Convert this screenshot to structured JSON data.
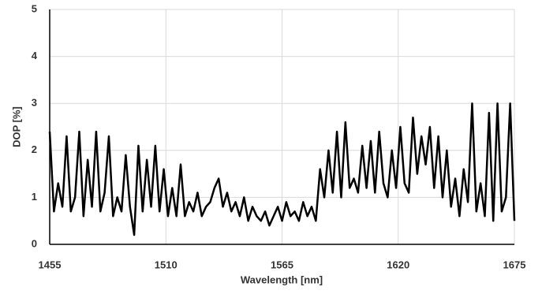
{
  "chart_data": {
    "type": "line",
    "x_label": "Wavelength [nm]",
    "y_label": "DOP [%]",
    "x": [
      1455,
      1457,
      1459,
      1461,
      1463,
      1465,
      1467,
      1469,
      1471,
      1473,
      1475,
      1477,
      1479,
      1481,
      1483,
      1485,
      1487,
      1489,
      1491,
      1493,
      1495,
      1497,
      1499,
      1501,
      1503,
      1505,
      1507,
      1509,
      1511,
      1513,
      1515,
      1517,
      1519,
      1521,
      1523,
      1525,
      1527,
      1529,
      1531,
      1533,
      1535,
      1537,
      1539,
      1541,
      1543,
      1545,
      1547,
      1549,
      1551,
      1553,
      1555,
      1557,
      1559,
      1561,
      1563,
      1565,
      1567,
      1569,
      1571,
      1573,
      1575,
      1577,
      1579,
      1581,
      1583,
      1585,
      1587,
      1589,
      1591,
      1593,
      1595,
      1597,
      1599,
      1601,
      1603,
      1605,
      1607,
      1609,
      1611,
      1613,
      1615,
      1617,
      1619,
      1621,
      1623,
      1625,
      1627,
      1629,
      1631,
      1633,
      1635,
      1637,
      1639,
      1641,
      1643,
      1645,
      1647,
      1649,
      1651,
      1653,
      1655,
      1657,
      1659,
      1661,
      1663,
      1665,
      1667,
      1669,
      1671,
      1673,
      1675
    ],
    "series": [
      {
        "name": "DOP",
        "color": "#000000",
        "values": [
          2.4,
          0.7,
          1.3,
          0.8,
          2.3,
          0.7,
          1.0,
          2.4,
          0.6,
          1.8,
          0.8,
          2.4,
          0.7,
          1.1,
          2.3,
          0.6,
          1.0,
          0.7,
          1.9,
          0.8,
          0.2,
          2.1,
          0.7,
          1.8,
          0.8,
          2.1,
          0.7,
          1.6,
          0.6,
          1.2,
          0.6,
          1.7,
          0.6,
          0.9,
          0.7,
          1.1,
          0.6,
          0.8,
          0.9,
          1.2,
          1.4,
          0.8,
          1.1,
          0.7,
          0.9,
          0.6,
          1.0,
          0.5,
          0.8,
          0.6,
          0.5,
          0.7,
          0.4,
          0.6,
          0.8,
          0.5,
          0.9,
          0.6,
          0.7,
          0.5,
          0.9,
          0.6,
          0.8,
          0.5,
          1.6,
          1.0,
          2.0,
          1.1,
          2.4,
          1.0,
          2.6,
          1.2,
          1.4,
          1.1,
          2.1,
          1.2,
          2.2,
          1.1,
          2.4,
          1.3,
          1.0,
          2.0,
          1.2,
          2.5,
          1.3,
          1.1,
          2.7,
          1.5,
          2.3,
          1.7,
          2.5,
          1.2,
          2.3,
          1.0,
          2.0,
          0.8,
          1.4,
          0.6,
          1.6,
          0.9,
          3.0,
          0.7,
          1.3,
          0.6,
          2.8,
          0.5,
          3.0,
          0.7,
          1.0,
          3.0,
          0.5
        ]
      }
    ],
    "xlim": [
      1455,
      1675
    ],
    "xticks": [
      1455,
      1510,
      1565,
      1620,
      1675
    ],
    "ylim": [
      0,
      5
    ],
    "yticks": [
      0,
      1,
      2,
      3,
      4,
      5
    ],
    "grid": true
  }
}
